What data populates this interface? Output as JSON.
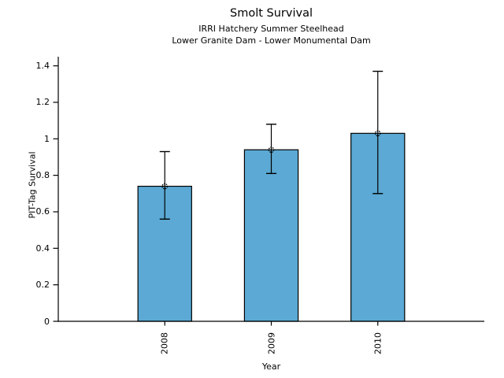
{
  "chart_data": {
    "type": "bar",
    "title": "Smolt Survival",
    "subtitle1": "IRRI Hatchery Summer Steelhead",
    "subtitle2": "Lower Granite Dam - Lower Monumental Dam",
    "xlabel": "Year",
    "ylabel": "PIT-Tag Survival",
    "categories": [
      "2008",
      "2009",
      "2010"
    ],
    "values": [
      0.74,
      0.94,
      1.03
    ],
    "error_low": [
      0.56,
      0.81,
      0.7
    ],
    "error_high": [
      0.93,
      1.08,
      1.37
    ],
    "ytick_values": [
      0,
      0.2,
      0.4,
      0.6,
      0.8,
      1,
      1.2,
      1.4
    ],
    "ytick_labels": [
      "0",
      "0.2",
      "0.4",
      "0.6",
      "0.8",
      "1",
      "1.2",
      "1.4"
    ],
    "ylim": [
      0,
      1.45
    ],
    "grid": false,
    "legend": "none",
    "marker": "open-circle",
    "bar_color": "#5BA9D4",
    "bar_edge_color": "#000000",
    "axis_color": "#000000",
    "background_color": "#ffffff"
  }
}
